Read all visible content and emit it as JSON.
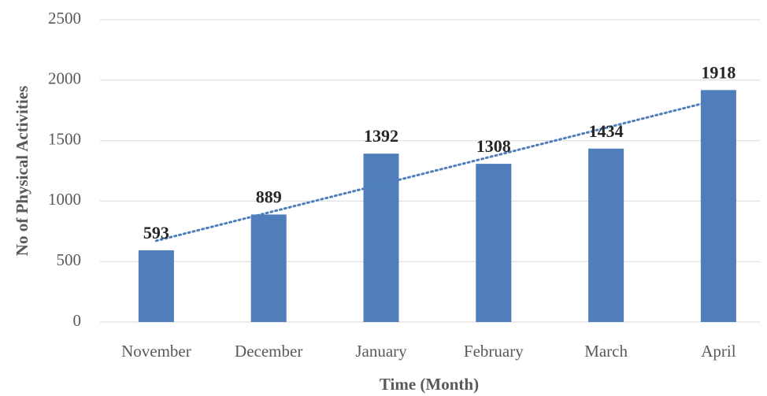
{
  "chart_data": {
    "type": "bar",
    "x_label": "Time (Month)",
    "y_label": "No of Physical Activities",
    "categories": [
      "November",
      "December",
      "January",
      "February",
      "March",
      "April"
    ],
    "values": [
      593,
      889,
      1392,
      1308,
      1434,
      1918
    ],
    "color": "#4f7ebb",
    "trendline": "linear",
    "ylim": [
      0,
      2500
    ],
    "yticks": [
      0,
      500,
      1000,
      1500,
      2000,
      2500
    ],
    "grid": true
  }
}
